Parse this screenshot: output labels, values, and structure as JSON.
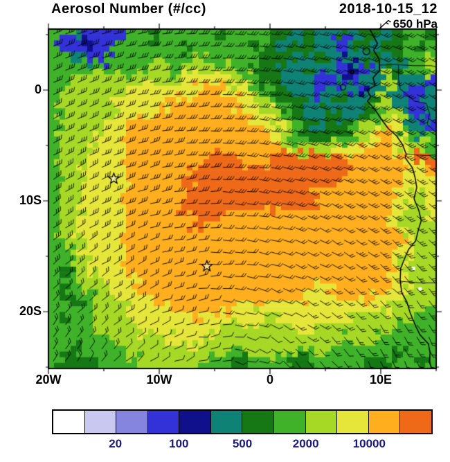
{
  "header": {
    "title": "Aerosol Number (#/cc)",
    "datetime": "2018-10-15_12",
    "level": "650 hPa"
  },
  "map": {
    "lon_min": -20,
    "lon_max": 15,
    "lat_min": -25.125,
    "lat_max": 5.5,
    "x_ticks": [
      {
        "lon": -20,
        "label": "20W"
      },
      {
        "lon": -10,
        "label": "10W"
      },
      {
        "lon": 0,
        "label": "0"
      },
      {
        "lon": 10,
        "label": "10E"
      }
    ],
    "y_ticks": [
      {
        "lat": 0,
        "label": "0"
      },
      {
        "lat": -10,
        "label": "10S"
      },
      {
        "lat": -20,
        "label": "20S"
      }
    ],
    "stars": [
      [
        -14.1,
        -8.0
      ],
      [
        -5.7,
        -15.9
      ]
    ],
    "islands": [
      [
        8.7,
        3.5,
        5
      ],
      [
        7.4,
        1.62,
        2.5
      ],
      [
        6.6,
        0.25,
        4
      ]
    ],
    "white_specks": [
      [
        12.95,
        -16.1
      ],
      [
        13.55,
        -17.95
      ]
    ],
    "coastline": [
      [
        9.0,
        5.5
      ],
      [
        9.7,
        4.2
      ],
      [
        9.35,
        3.6
      ],
      [
        9.85,
        2.8
      ],
      [
        9.9,
        1.8
      ],
      [
        9.3,
        1.1
      ],
      [
        9.5,
        0.4
      ],
      [
        8.75,
        0.0
      ],
      [
        9.1,
        -0.6
      ],
      [
        8.8,
        -1.0
      ],
      [
        9.5,
        -1.8
      ],
      [
        10.1,
        -2.7
      ],
      [
        10.7,
        -3.5
      ],
      [
        11.4,
        -4.1
      ],
      [
        11.95,
        -4.9
      ],
      [
        12.3,
        -5.8
      ],
      [
        12.2,
        -6.1
      ],
      [
        12.85,
        -7.0
      ],
      [
        13.1,
        -7.9
      ],
      [
        13.25,
        -8.8
      ],
      [
        13.0,
        -9.8
      ],
      [
        13.45,
        -10.9
      ],
      [
        13.65,
        -11.8
      ],
      [
        13.4,
        -12.6
      ],
      [
        13.15,
        -13.6
      ],
      [
        12.5,
        -14.4
      ],
      [
        12.15,
        -15.2
      ],
      [
        11.8,
        -16.1
      ],
      [
        11.75,
        -17.2
      ],
      [
        11.9,
        -18.3
      ],
      [
        12.35,
        -19.1
      ],
      [
        12.65,
        -20.1
      ],
      [
        13.15,
        -21.3
      ],
      [
        13.55,
        -22.1
      ],
      [
        14.3,
        -22.9
      ],
      [
        14.45,
        -23.7
      ],
      [
        14.4,
        -24.5
      ],
      [
        14.6,
        -25.2
      ]
    ],
    "borders": [
      [
        [
          9.85,
          2.25
        ],
        [
          11.35,
          2.3
        ],
        [
          13.0,
          2.2
        ],
        [
          14.55,
          2.2
        ],
        [
          15.2,
          2.05
        ]
      ],
      [
        [
          11.6,
          2.3
        ],
        [
          11.6,
          1.0
        ],
        [
          11.75,
          0.1
        ],
        [
          12.45,
          -0.45
        ],
        [
          13.05,
          -1.0
        ],
        [
          14.1,
          -1.2
        ],
        [
          14.4,
          -2.1
        ],
        [
          14.2,
          -3.1
        ],
        [
          15.2,
          -4.0
        ]
      ],
      [
        [
          12.25,
          -5.75
        ],
        [
          13.1,
          -5.85
        ],
        [
          14.05,
          -5.9
        ],
        [
          15.2,
          -5.85
        ]
      ],
      [
        [
          11.75,
          -17.25
        ],
        [
          13.5,
          -17.4
        ],
        [
          15.2,
          -17.4
        ]
      ]
    ]
  },
  "chart_data": {
    "type": "heatmap",
    "title": "Aerosol Number (#/cc)",
    "units": "#/cc",
    "time": "2018-10-15_12",
    "level": "650 hPa",
    "lon_range": [
      -20,
      15
    ],
    "lat_range": [
      -25.125,
      5.5
    ],
    "levels": [
      10,
      20,
      50,
      100,
      200,
      500,
      1000,
      2000,
      5000,
      10000,
      20000
    ],
    "colors": [
      "#ffffff",
      "#c8c8f0",
      "#8585e0",
      "#3232d8",
      "#10108c",
      "#0f8276",
      "#157815",
      "#3fb22a",
      "#a6d826",
      "#e6e63a",
      "#ffaf1e",
      "#ef6a18"
    ],
    "colorbar_labels": [
      {
        "text": "20",
        "boundary": 2
      },
      {
        "text": "100",
        "boundary": 4
      },
      {
        "text": "500",
        "boundary": 6
      },
      {
        "text": "2000",
        "boundary": 8
      },
      {
        "text": "10000",
        "boundary": 10
      }
    ],
    "label_color": "#1a1a80",
    "grid": {
      "ncols": 35,
      "nrows": 30,
      "legend": "each hex digit 0-B indexes colors[]; rows north-to-south, cols 20W-15E",
      "rows": [
        "77533 33776 77777 67777 66565 56566 56776",
        "73343 37777 77677 77767 65665 53565 66767",
        "77553 77777 77787 77776 66556 54556 56778",
        "77777 78778 87888 87766 65565 53435 55778",
        "77888 88888 88999 98876 65553 34355 86553",
        "78888 88999 999AA A9987 66553 55345 85335",
        "78888 89999 9AAAA AA998 76655 56556 85335",
        "78888 8999A AAAAA AAA99 87655 65567 88535",
        "78888 99AAA AAAAA AAAA9 98765 66788 89553",
        "78889 99AAA AAAAA AAAAA 98766 67789 A9757",
        "78889 99AAA AAAAA AAAAA A9888 899AA A9887",
        "78899 99AAA AAAAB BBAAA BBBBB BBAAA AA9BB",
        "78899 99AAA AAABB BBBBB BBBBB BBAAA AA99A",
        "78899 99AAA AABBB BBBBB BBBBB BAAAA AA999",
        "78899 99AAA AAABB BBBBB BBBBA AAAAA A9989",
        "78899 99AAA AABBB BBBBB BBBBA AAAAA A9889",
        "78899 99AAA AAABB BAAAA AAAAA AAAAA A9889",
        "78999 99AAA AAABA AAAAA AAAAA AAAAA A9888",
        "78899 99AAA AAAAA AAAAA AAAAA AAAAA AA988",
        "77899 99AAA AAAAA AAAAA AAAAA AAAAA A9988",
        "77889 99AAA AAAAA AAAAA AAAAA AAAAA A9888",
        "76889 99AAA AAAAA AAAAA AAAAA AAAAA A9888",
        "76788 999AA AAAAA AAAAA AAAA9 AAAAA A9988",
        "76678 8999A AAAAA AAAAA AAA99 9AAA9 99888",
        "77678 88999 9AAAA AA999 99999 99999 98887",
        "76778 88999 999A9 99998 89999 99888 88877",
        "77778 88899 99999 98888 88998 88888 87777",
        "77777 78888 89998 88888 88888 87887 77777",
        "76677 77888 88888 87788 88778 77777 76777",
        "76667 77788 88887 76677 77667 77776 67767"
      ]
    },
    "wind": {
      "spacing": 17.5,
      "center_lon": -3,
      "center_lat": -29,
      "u0": -4,
      "v0": 2,
      "scale": 1.1,
      "jitter": 5,
      "shaft": 13
    }
  }
}
